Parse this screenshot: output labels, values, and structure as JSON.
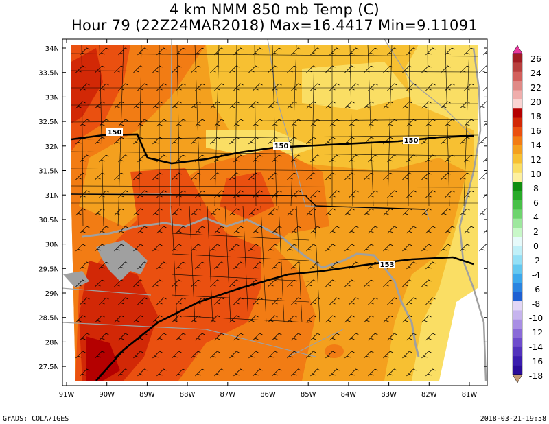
{
  "title_line1": "4 km NMM 850 mb Temp (C)",
  "title_line2": "Hour 79 (22Z24MAR2018) Max=16.4417 Min=9.11091",
  "credit": "GrADS: COLA/IGES",
  "timestamp": "2018-03-21-19:58",
  "lat_ticks": [
    "34N",
    "33.5N",
    "33N",
    "32.5N",
    "32N",
    "31.5N",
    "31N",
    "30.5N",
    "30N",
    "29.5N",
    "29N",
    "28.5N",
    "28N",
    "27.5N"
  ],
  "lon_ticks": [
    "91W",
    "90W",
    "89W",
    "88W",
    "87W",
    "86W",
    "85W",
    "84W",
    "83W",
    "82W",
    "81W"
  ],
  "colorbar": {
    "labels": [
      "26",
      "24",
      "22",
      "20",
      "18",
      "16",
      "14",
      "12",
      "10",
      "8",
      "6",
      "4",
      "2",
      "0",
      "-2",
      "-4",
      "-6",
      "-8",
      "-10",
      "-12",
      "-14",
      "-16",
      "-18"
    ],
    "colors": [
      "#a01c22",
      "#b8403e",
      "#d2605c",
      "#e08a86",
      "#f0aeac",
      "#fad4d2",
      "#b40000",
      "#d22806",
      "#ea5010",
      "#f27c14",
      "#f4a01e",
      "#f7c032",
      "#fade64",
      "#fdf0a0",
      "#108e10",
      "#28aa28",
      "#48c048",
      "#6ed46e",
      "#9ee89e",
      "#c8f8c8",
      "#e6fafa",
      "#c0f0f8",
      "#94e0f6",
      "#64c8f0",
      "#3ca8ec",
      "#2a84e0",
      "#1e60d2",
      "#e2d6f6",
      "#c6b4ee",
      "#a88ee4",
      "#8a6ad8",
      "#6e4ccc",
      "#5232bc",
      "#3a1cae",
      "#2a0c9a"
    ],
    "top_arrow_color": "#e8389e",
    "bottom_arrow_color": "#c49a74"
  },
  "contour_labels": [
    "150",
    "150",
    "150",
    "153"
  ]
}
